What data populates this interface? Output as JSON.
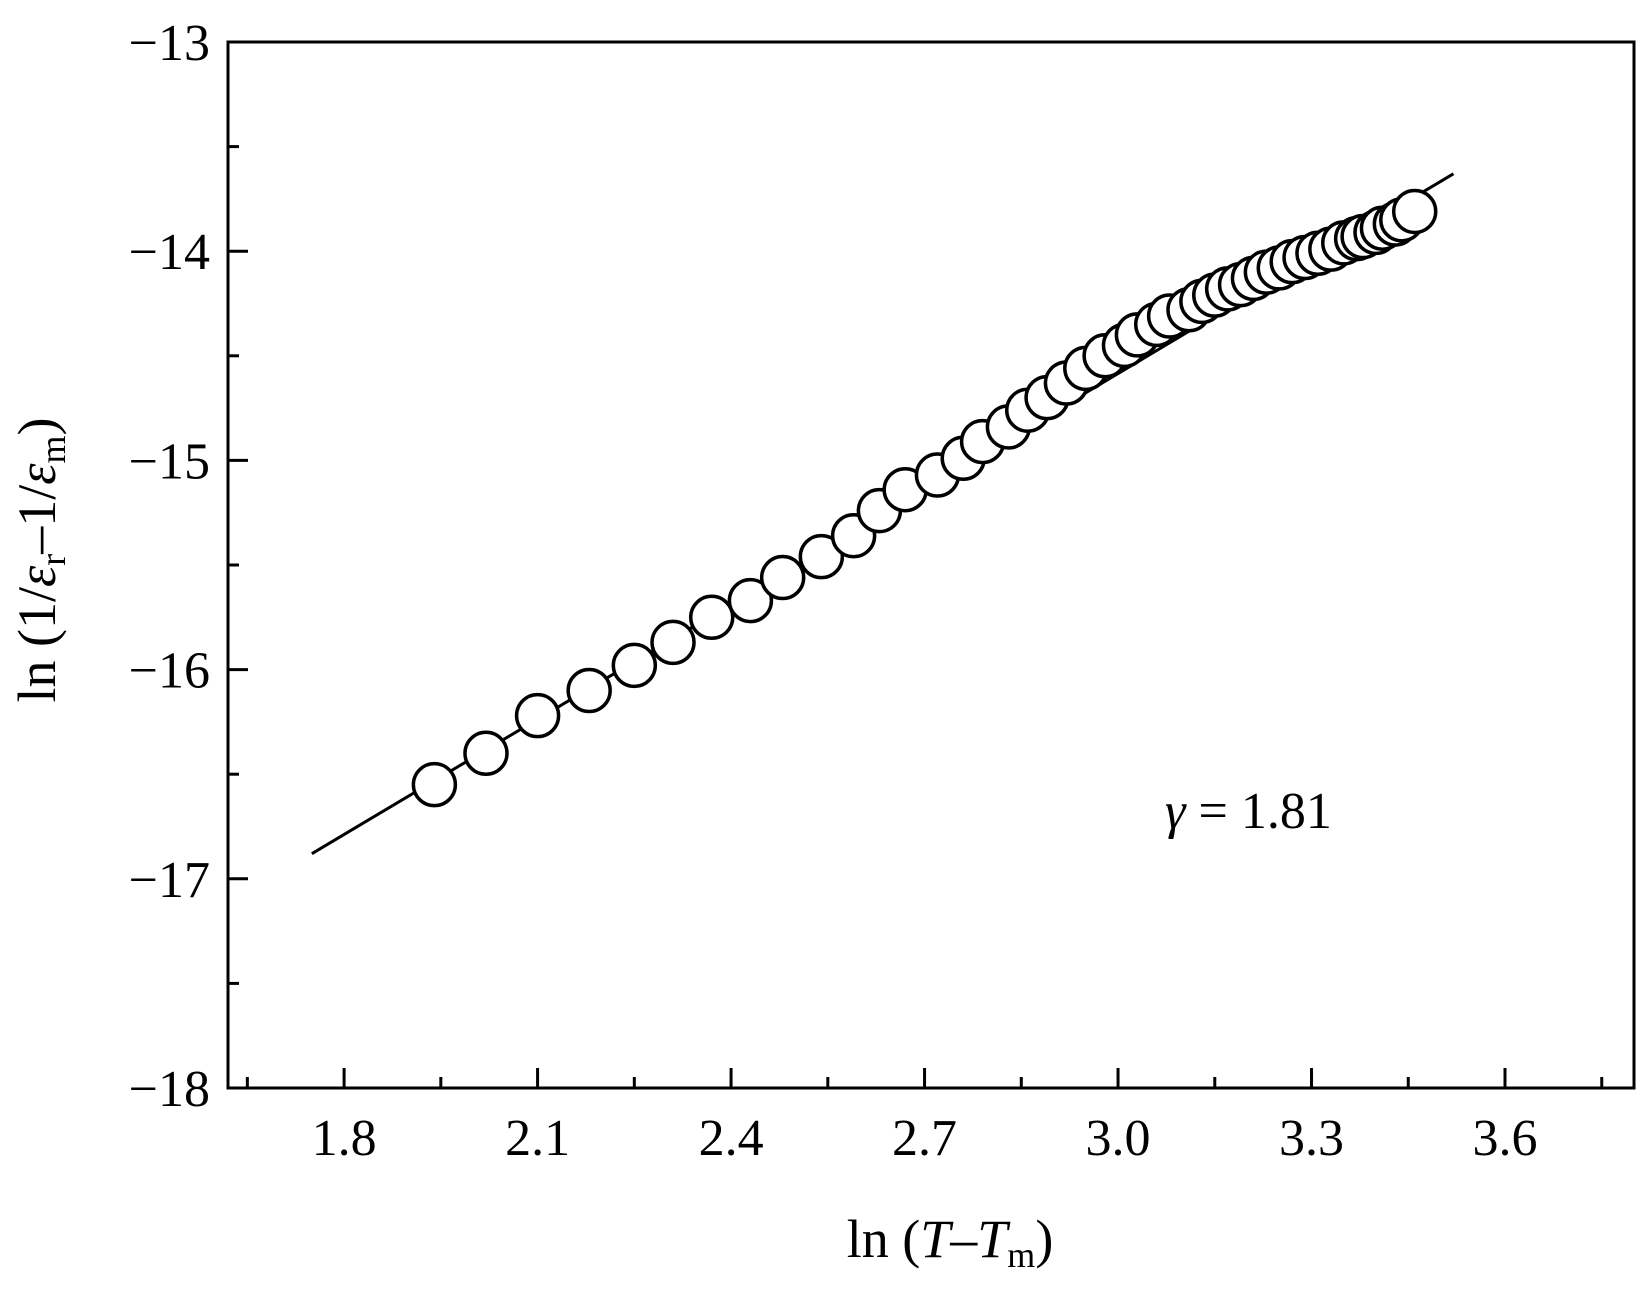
{
  "chart_data": {
    "type": "scatter",
    "xlabel": {
      "prefix": "ln (",
      "var1": "T",
      "dash": "–",
      "var2": "T",
      "sub2": "m",
      "suffix": ")"
    },
    "ylabel": {
      "prefix": "ln (1/",
      "var1": "ε",
      "sub1": "r",
      "mid": "–1/",
      "var2": "ε",
      "sub2": "m",
      "suffix": ")"
    },
    "xlim": [
      1.62,
      3.8
    ],
    "ylim": [
      -18,
      -13
    ],
    "xticks": [
      1.8,
      2.1,
      2.4,
      2.7,
      3.0,
      3.3,
      3.6
    ],
    "xtick_labels": [
      "1.8",
      "2.1",
      "2.4",
      "2.7",
      "3.0",
      "3.3",
      "3.6"
    ],
    "yticks": [
      -18,
      -17,
      -16,
      -15,
      -14,
      -13
    ],
    "ytick_labels": [
      "−18",
      "−17",
      "−16",
      "−15",
      "−14",
      "−13"
    ],
    "grid": false,
    "annotation": {
      "var": "γ",
      "text": " = 1.81"
    },
    "series": [
      {
        "marker": "open-circle",
        "x": [
          1.94,
          2.02,
          2.1,
          2.18,
          2.25,
          2.31,
          2.37,
          2.43,
          2.48,
          2.54,
          2.59,
          2.63,
          2.67,
          2.72,
          2.76,
          2.79,
          2.83,
          2.86,
          2.89,
          2.92,
          2.95,
          2.98,
          3.01,
          3.03,
          3.06,
          3.08,
          3.11,
          3.13,
          3.15,
          3.17,
          3.19,
          3.21,
          3.23,
          3.25,
          3.27,
          3.29,
          3.31,
          3.33,
          3.35,
          3.37,
          3.38,
          3.4,
          3.41,
          3.43,
          3.44,
          3.46
        ],
        "y": [
          -16.55,
          -16.4,
          -16.22,
          -16.1,
          -15.98,
          -15.87,
          -15.75,
          -15.67,
          -15.56,
          -15.46,
          -15.36,
          -15.24,
          -15.14,
          -15.07,
          -14.99,
          -14.91,
          -14.84,
          -14.76,
          -14.7,
          -14.63,
          -14.56,
          -14.5,
          -14.45,
          -14.4,
          -14.35,
          -14.31,
          -14.28,
          -14.24,
          -14.21,
          -14.18,
          -14.16,
          -14.13,
          -14.1,
          -14.08,
          -14.05,
          -14.03,
          -14.01,
          -13.99,
          -13.96,
          -13.94,
          -13.93,
          -13.91,
          -13.89,
          -13.87,
          -13.85,
          -13.81
        ]
      }
    ],
    "fit_line": {
      "x": [
        1.75,
        3.52
      ],
      "y": [
        -16.88,
        -13.63
      ]
    }
  }
}
